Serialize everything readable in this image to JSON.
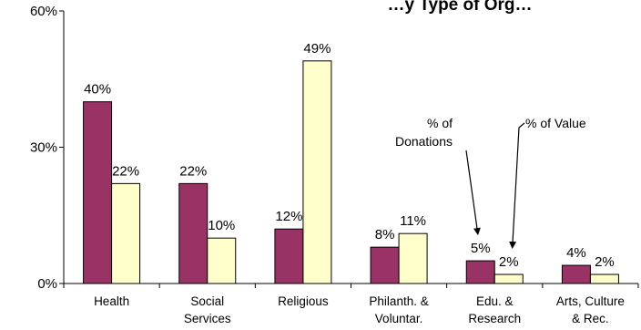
{
  "chart_data": {
    "type": "bar",
    "title": "…y Type of Org…",
    "categories": [
      [
        "Health"
      ],
      [
        "Social",
        "Services"
      ],
      [
        "Religious"
      ],
      [
        "Philanth. &",
        "Voluntar."
      ],
      [
        "Edu. &",
        "Research"
      ],
      [
        "Arts, Culture",
        "& Rec."
      ]
    ],
    "series": [
      {
        "name": "% of Donations",
        "color": "#993366",
        "values": [
          40,
          22,
          12,
          8,
          5,
          4
        ],
        "labels": [
          "40%",
          "22%",
          "12%",
          "8%",
          "5%",
          "4%"
        ]
      },
      {
        "name": "% of Value",
        "color": "#ffffcc",
        "values": [
          22,
          10,
          49,
          11,
          2,
          2
        ],
        "labels": [
          "22%",
          "10%",
          "49%",
          "11%",
          "2%",
          "2%"
        ]
      }
    ],
    "ylim": [
      0,
      60
    ],
    "yticks": [
      0,
      30,
      60
    ],
    "ytick_labels": [
      "0%",
      "30%",
      "60%"
    ],
    "annotations": [
      {
        "lines": [
          "% of",
          "Donations"
        ],
        "target_series": 0,
        "target_category": 4
      },
      {
        "lines": [
          "% of Value"
        ],
        "target_series": 1,
        "target_category": 4
      }
    ]
  }
}
